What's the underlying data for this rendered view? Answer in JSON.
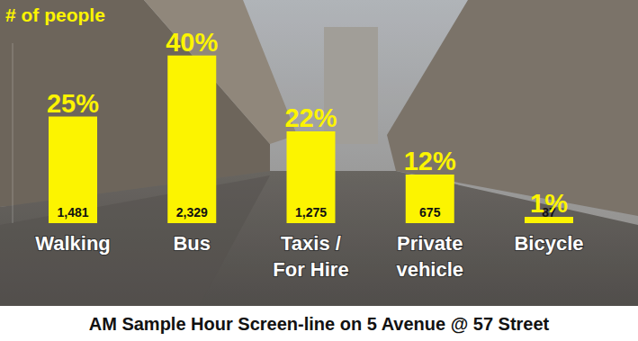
{
  "chart_data": {
    "type": "bar",
    "title": "AM Sample Hour Screen-line on 5 Avenue @ 57 Street",
    "ylabel": "# of people",
    "categories": [
      "Walking",
      "Bus",
      "Taxis / For Hire",
      "Private vehicle",
      "Bicycle"
    ],
    "values": [
      1481,
      2329,
      1275,
      675,
      87
    ],
    "value_labels": [
      "1,481",
      "2,329",
      "1,275",
      "675",
      "87"
    ],
    "shares": [
      25,
      40,
      22,
      12,
      1
    ],
    "share_labels": [
      "25%",
      "40%",
      "22%",
      "12%",
      "1%"
    ],
    "color": "#fcf400",
    "ylim": [
      0,
      2500
    ],
    "data_labels": true,
    "tick_labels": "x",
    "grid": false
  }
}
